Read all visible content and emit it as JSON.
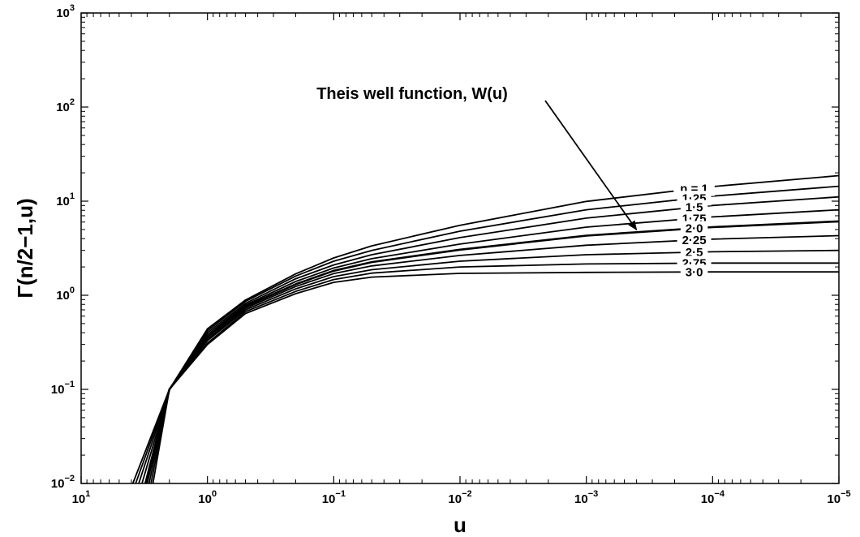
{
  "chart_data": {
    "type": "line",
    "title": "",
    "xlabel": "u",
    "ylabel": "Γ(n/2−1,u)",
    "x_scale": "log",
    "y_scale": "log",
    "x_reversed": true,
    "xlim": [
      10,
      1e-05
    ],
    "ylim": [
      0.01,
      1000
    ],
    "grid": false,
    "legend": "none",
    "x_ticks": [
      {
        "value": 10,
        "base": "10",
        "exp": "1"
      },
      {
        "value": 1,
        "base": "10",
        "exp": "0"
      },
      {
        "value": 0.1,
        "base": "10",
        "exp": "−1"
      },
      {
        "value": 0.01,
        "base": "10",
        "exp": "−2"
      },
      {
        "value": 0.001,
        "base": "10",
        "exp": "−3"
      },
      {
        "value": 0.0001,
        "base": "10",
        "exp": "−4"
      },
      {
        "value": 1e-05,
        "base": "10",
        "exp": "−5"
      }
    ],
    "y_ticks": [
      {
        "value": 0.01,
        "base": "10",
        "exp": "−2"
      },
      {
        "value": 0.1,
        "base": "10",
        "exp": "−1"
      },
      {
        "value": 1,
        "base": "10",
        "exp": "0"
      },
      {
        "value": 10,
        "base": "10",
        "exp": "1"
      },
      {
        "value": 100,
        "base": "10",
        "exp": "2"
      },
      {
        "value": 1000,
        "base": "10",
        "exp": "3"
      }
    ],
    "series": [
      {
        "label": "n = 1",
        "n": 1.0,
        "x": [
          3.9,
          2,
          1,
          0.5,
          0.2,
          0.1,
          0.05,
          0.01,
          0.001,
          0.0001,
          1e-05
        ],
        "y": [
          0.01,
          0.1,
          0.44,
          0.89,
          1.69,
          2.49,
          3.35,
          5.55,
          9.95,
          14.3,
          18.7
        ]
      },
      {
        "label": "1·25",
        "n": 1.25,
        "x": [
          3.7,
          2,
          1,
          0.5,
          0.2,
          0.1,
          0.05,
          0.01,
          0.001,
          0.0001,
          1e-05
        ],
        "y": [
          0.01,
          0.1,
          0.42,
          0.86,
          1.6,
          2.3,
          3.0,
          4.8,
          8.1,
          11.3,
          14.4
        ]
      },
      {
        "label": "1·5",
        "n": 1.5,
        "x": [
          3.5,
          2,
          1,
          0.5,
          0.2,
          0.1,
          0.05,
          0.01,
          0.001,
          0.0001,
          1e-05
        ],
        "y": [
          0.01,
          0.1,
          0.4,
          0.82,
          1.5,
          2.1,
          2.7,
          4.1,
          6.6,
          9.0,
          11.1
        ]
      },
      {
        "label": "1·75",
        "n": 1.75,
        "x": [
          3.3,
          2,
          1,
          0.5,
          0.2,
          0.1,
          0.05,
          0.01,
          0.001,
          0.0001,
          1e-05
        ],
        "y": [
          0.01,
          0.1,
          0.38,
          0.79,
          1.4,
          1.95,
          2.45,
          3.5,
          5.3,
          6.8,
          8.1
        ]
      },
      {
        "label": "2·0",
        "n": 2.0,
        "x": [
          3.1,
          2,
          1,
          0.5,
          0.2,
          0.1,
          0.05,
          0.01,
          0.001,
          0.0001,
          1e-05
        ],
        "y": [
          0.01,
          0.1,
          0.36,
          0.76,
          1.31,
          1.82,
          2.25,
          3.05,
          4.3,
          5.3,
          6.1
        ]
      },
      {
        "label": "2·25",
        "n": 2.25,
        "x": [
          3.0,
          2,
          1,
          0.5,
          0.2,
          0.1,
          0.05,
          0.01,
          0.001,
          0.0001,
          1e-05
        ],
        "y": [
          0.01,
          0.1,
          0.34,
          0.73,
          1.24,
          1.7,
          2.05,
          2.65,
          3.4,
          3.95,
          4.3
        ]
      },
      {
        "label": "2·5",
        "n": 2.5,
        "x": [
          2.9,
          2,
          1,
          0.5,
          0.2,
          0.1,
          0.05,
          0.01,
          0.001,
          0.0001,
          1e-05
        ],
        "y": [
          0.01,
          0.1,
          0.33,
          0.7,
          1.17,
          1.58,
          1.87,
          2.3,
          2.7,
          2.9,
          3.0
        ]
      },
      {
        "label": "2·75",
        "n": 2.75,
        "x": [
          2.8,
          2,
          1,
          0.5,
          0.2,
          0.1,
          0.05,
          0.01,
          0.001,
          0.0001,
          1e-05
        ],
        "y": [
          0.01,
          0.1,
          0.31,
          0.67,
          1.1,
          1.47,
          1.72,
          2.0,
          2.15,
          2.2,
          2.2
        ]
      },
      {
        "label": "3·0",
        "n": 3.0,
        "x": [
          2.7,
          2,
          1,
          0.5,
          0.2,
          0.1,
          0.05,
          0.01,
          0.001,
          0.0001,
          1e-05
        ],
        "y": [
          0.01,
          0.1,
          0.3,
          0.64,
          1.04,
          1.37,
          1.56,
          1.71,
          1.75,
          1.77,
          1.77
        ]
      }
    ],
    "annotations": [
      {
        "text": "Theis well function, W(u)",
        "points_to_series": "2·0"
      }
    ]
  }
}
